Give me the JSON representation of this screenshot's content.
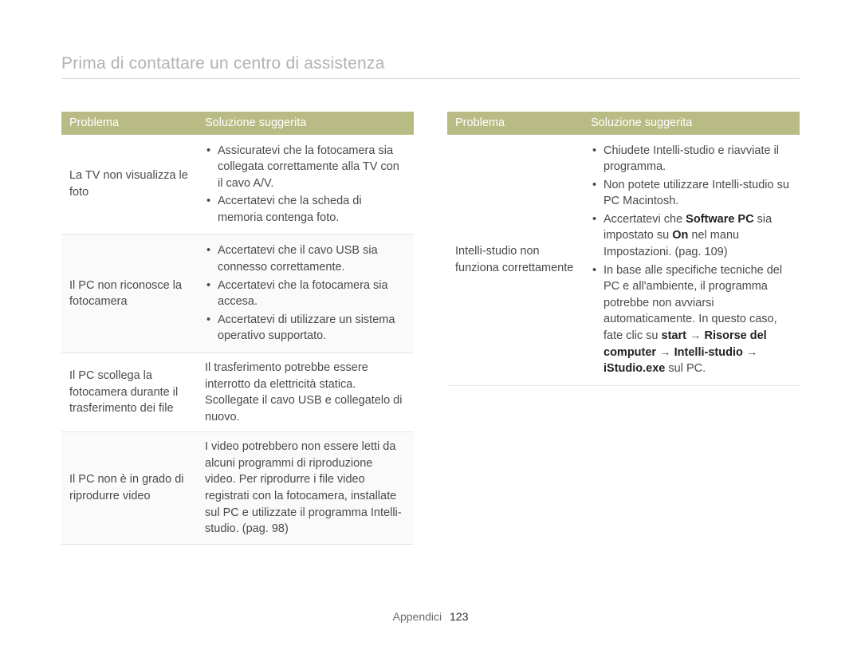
{
  "title": "Prima di contattare un centro di assistenza",
  "headers": {
    "problema": "Problema",
    "soluzione": "Soluzione suggerita"
  },
  "footer": {
    "section": "Appendici",
    "page": "123"
  },
  "leftTable": {
    "rows": [
      {
        "problem": "La TV non visualizza le foto",
        "type": "list",
        "items": [
          "Assicuratevi che la fotocamera sia collegata correttamente alla TV con il cavo A/V.",
          "Accertatevi che la scheda di memoria contenga foto."
        ]
      },
      {
        "problem": "Il PC non riconosce la fotocamera",
        "type": "list",
        "items": [
          "Accertatevi che il cavo USB sia connesso correttamente.",
          "Accertatevi che la fotocamera sia accesa.",
          "Accertatevi di utilizzare un sistema operativo supportato."
        ]
      },
      {
        "problem": "Il PC scollega la fotocamera durante il trasferimento dei file",
        "type": "text",
        "text": "Il trasferimento potrebbe essere interrotto da elettricità statica. Scollegate il cavo USB e collegatelo di nuovo."
      },
      {
        "problem": "Il PC non è in grado di riprodurre video",
        "type": "text",
        "text": "I video potrebbero non essere letti da alcuni programmi di riproduzione video. Per riprodurre i file video registrati con la fotocamera, installate sul PC e utilizzate il programma Intelli-studio. (pag. 98)"
      }
    ]
  },
  "rightTable": {
    "rows": [
      {
        "problem": "Intelli-studio non funziona correttamente",
        "type": "list",
        "items": [
          {
            "html": "Chiudete Intelli-studio e riavviate il programma."
          },
          {
            "html": "Non potete utilizzare Intelli-studio su PC Macintosh."
          },
          {
            "html": "Accertatevi che <b>Software PC</b> sia impostato su <b>On</b> nel manu Impostazioni. (pag. 109)"
          },
          {
            "html": "In base alle specifiche tecniche del PC e all'ambiente, il programma potrebbe non avviarsi automaticamente. In questo caso, fate clic su <b>start</b> → <b>Risorse del computer</b> → <b>Intelli-studio</b> → <b>iStudio.exe</b> sul PC."
          }
        ]
      }
    ]
  }
}
